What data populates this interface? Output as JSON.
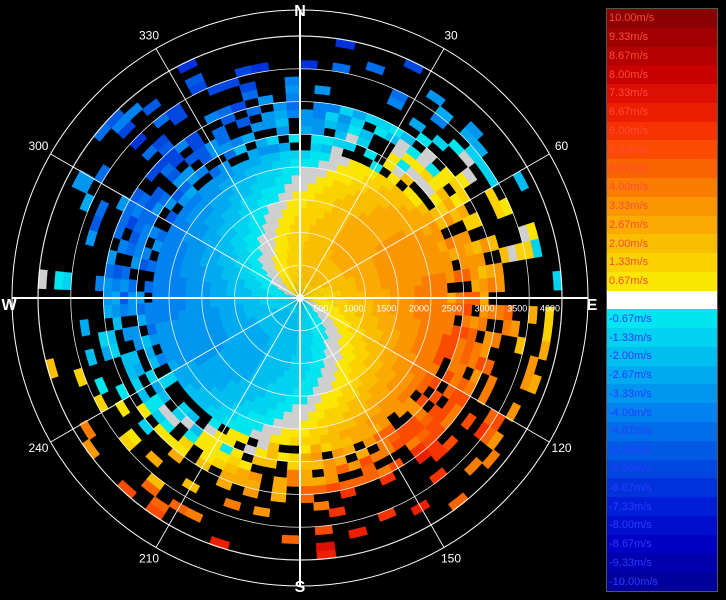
{
  "chart_data": {
    "type": "heatmap",
    "subtype": "polar Doppler velocity (PPI)",
    "compass": {
      "north": "N",
      "east": "E",
      "south": "S",
      "west": "W"
    },
    "angle_labels": [
      "30",
      "60",
      "120",
      "150",
      "210",
      "240",
      "300",
      "330"
    ],
    "angle_label_degrees": [
      30,
      60,
      120,
      150,
      210,
      240,
      300,
      330
    ],
    "range_labels": [
      "500",
      "1000",
      "1500",
      "2000",
      "2500",
      "3000",
      "3500",
      "4000"
    ],
    "range_max": 4000,
    "range_rings": [
      500,
      1000,
      1500,
      2000,
      2500,
      3000,
      3500,
      4000
    ],
    "legend": {
      "position": "right",
      "labels": [
        "10.00m/s",
        "9.33m/s",
        "8.67m/s",
        "8.00m/s",
        "7.33m/s",
        "6.67m/s",
        "6.00m/s",
        "5.33m/s",
        "4.67m/s",
        "4.00m/s",
        "3.33m/s",
        "2.67m/s",
        "2.00m/s",
        "1.33m/s",
        "0.67m/s",
        "0.00m/s",
        "-0.67m/s",
        "-1.33m/s",
        "-2.00m/s",
        "-2.67m/s",
        "-3.33m/s",
        "-4.00m/s",
        "-4.67m/s",
        "-5.33m/s",
        "-6.00m/s",
        "-6.67m/s",
        "-7.33m/s",
        "-8.00m/s",
        "-8.67m/s",
        "-9.33m/s",
        "-10.00m/s"
      ],
      "colors": [
        "#8b0000",
        "#a00000",
        "#b40000",
        "#c80000",
        "#dc0f00",
        "#eb1e00",
        "#f53200",
        "#fa4b00",
        "#fa6400",
        "#fa7d00",
        "#fa9600",
        "#faaa00",
        "#fabe00",
        "#fad200",
        "#fae600",
        "#ffffff",
        "#00e6f0",
        "#00d2f0",
        "#00bef0",
        "#00aaf0",
        "#0096f0",
        "#0082f0",
        "#006eeb",
        "#005ae6",
        "#0046e1",
        "#0032dc",
        "#001ed7",
        "#000fcd",
        "#0000c3",
        "#0000af",
        "#00009b"
      ]
    },
    "velocity_range": [
      -10,
      10
    ],
    "units": "m/s",
    "grid": true
  }
}
